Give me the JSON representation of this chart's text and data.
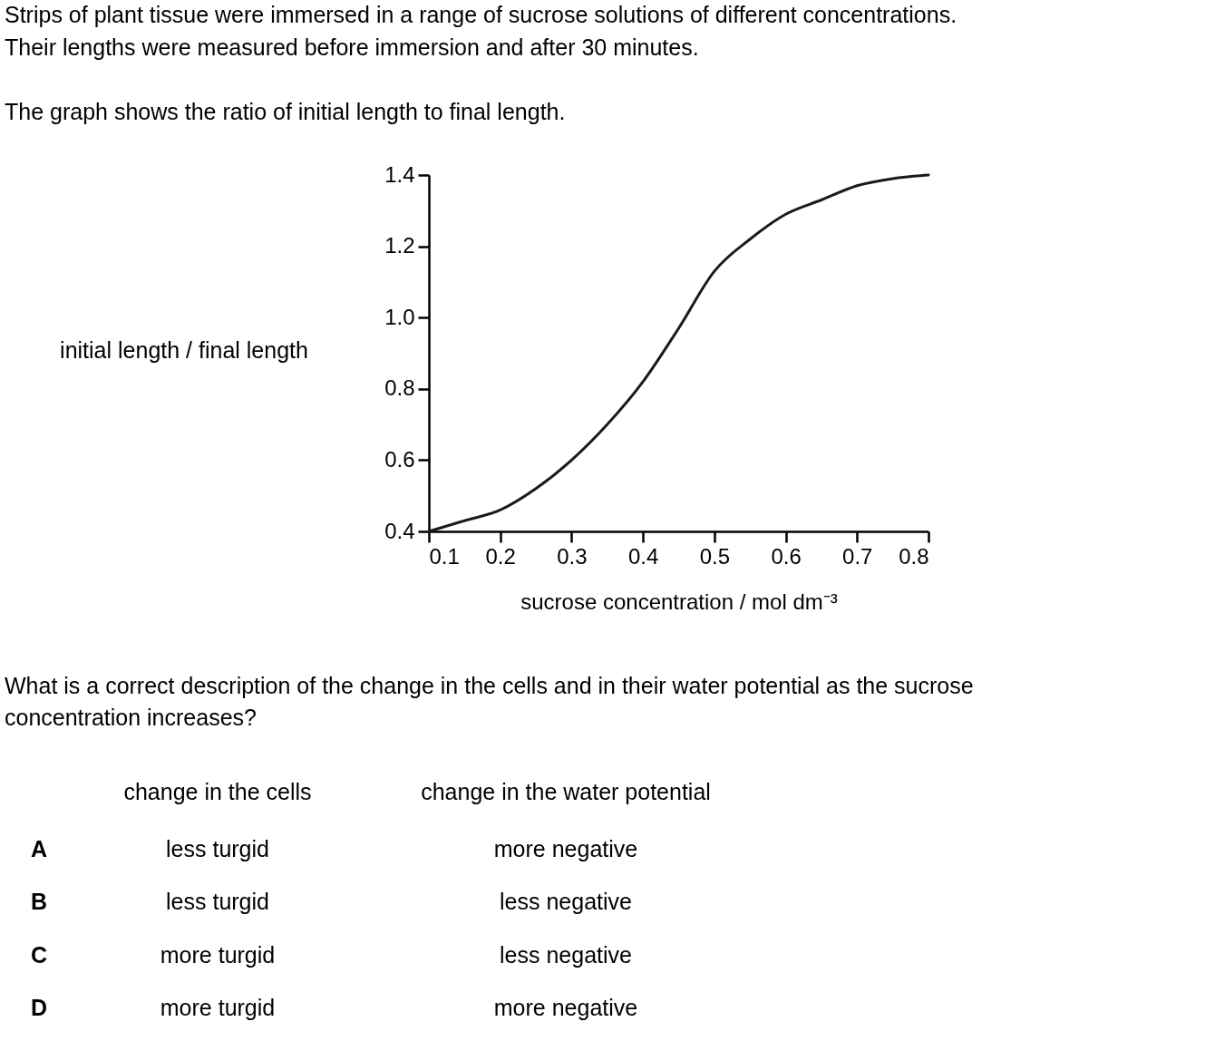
{
  "chart_data": {
    "type": "line",
    "xlabel": "sucrose concentration / mol dm⁻³",
    "ylabel": "initial length / final length",
    "x": [
      0.1,
      0.15,
      0.2,
      0.25,
      0.3,
      0.35,
      0.4,
      0.45,
      0.5,
      0.55,
      0.6,
      0.65,
      0.7,
      0.75,
      0.8
    ],
    "series": [
      {
        "color": "#1a1a1a",
        "values": [
          0.4,
          0.43,
          0.46,
          0.52,
          0.6,
          0.7,
          0.82,
          0.97,
          1.13,
          1.22,
          1.29,
          1.33,
          1.37,
          1.39,
          1.4
        ]
      }
    ],
    "xlim": [
      0.1,
      0.8
    ],
    "xticks": [
      0.1,
      0.2,
      0.3,
      0.4,
      0.5,
      0.6,
      0.7,
      0.8
    ],
    "ylim": [
      0.4,
      1.4
    ],
    "yticks": [
      0.4,
      0.6,
      0.8,
      {
        "value": 1,
        "label": "1.0"
      },
      1.2,
      1.4
    ],
    "grid": false,
    "marker": "none",
    "line_style": "solid",
    "annotations": [
      "Strips of plant tissue were immersed in a range of sucrose solutions of different concentrations.",
      "Their lengths were measured before immersion and after 30 minutes.",
      "The graph shows the ratio of initial length to final length.",
      "What is a correct description of the change in the cells and in their water potential as the sucrose",
      "concentration increases?",
      "change in the cells",
      "change in the water potential",
      "A",
      "less turgid",
      "more negative",
      "B",
      "less turgid",
      "less negative",
      "C",
      "more turgid",
      "less negative",
      "D",
      "more turgid",
      "more negative"
    ]
  }
}
